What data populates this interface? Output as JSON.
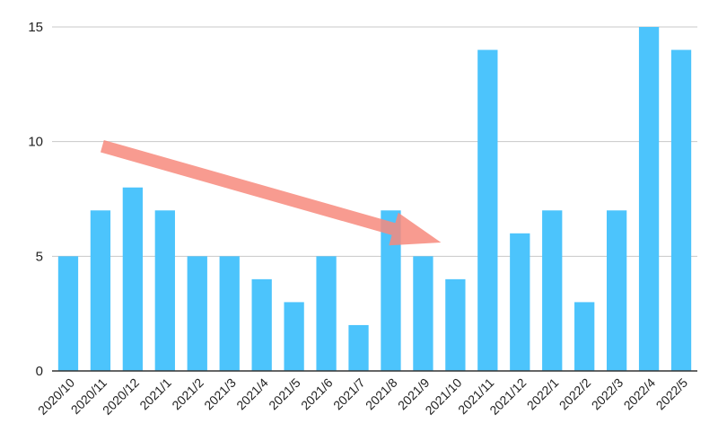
{
  "chart_data": {
    "type": "bar",
    "title": "",
    "xlabel": "",
    "ylabel": "",
    "categories": [
      "2020/10",
      "2020/11",
      "2020/12",
      "2021/1",
      "2021/2",
      "2021/3",
      "2021/4",
      "2021/5",
      "2021/6",
      "2021/7",
      "2021/8",
      "2021/9",
      "2021/10",
      "2021/11",
      "2021/12",
      "2022/1",
      "2022/2",
      "2022/3",
      "2022/4",
      "2022/5"
    ],
    "values": [
      5,
      7,
      8,
      7,
      5,
      5,
      4,
      3,
      5,
      2,
      7,
      5,
      4,
      14,
      6,
      7,
      3,
      7,
      15,
      14
    ],
    "ylim": [
      0,
      15
    ],
    "yticks": [
      0,
      5,
      10,
      15
    ],
    "grid": true,
    "legend": "none",
    "colors": {
      "bar": "#4cc4fc",
      "grid": "#c8c8c8",
      "axis": "#333333",
      "arrow": "#f78a7c"
    },
    "annotation": {
      "type": "arrow",
      "shape": "arrow-icon",
      "from_category": "2020/11",
      "from_value": 9.8,
      "to_category": "2021/10",
      "to_value": 5.6
    }
  }
}
